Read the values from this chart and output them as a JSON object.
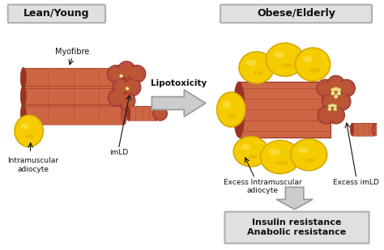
{
  "bg_color": "#ffffff",
  "lean_label": "Lean/Young",
  "obese_label": "Obese/Elderly",
  "lipotoxicity_label": "Lipotoxicity",
  "myofibre_label": "Myofibre",
  "imld_label": "imLD",
  "intramuscular_label": "Intramuscular\nadiocyte",
  "excess_intramuscular_label": "Excess Intramuscular\nadiocyte",
  "excess_imld_label": "Excess imLD",
  "insulin_label": "Insulin resistance\nAnabolic resistance",
  "muscle_color": "#cc6644",
  "muscle_dark": "#993322",
  "muscle_stripe": "#bb5533",
  "muscle_end": "#b85040",
  "fat_yellow": "#f5cc00",
  "fat_highlight": "#f8e040",
  "fat_border": "#d4aa00",
  "imld_color": "#f2e8a0",
  "imld_border": "#c8b840",
  "box_gray_light": "#e0e0e0",
  "box_gray_dark": "#b0b0b0",
  "arrow_fill": "#cccccc",
  "arrow_edge": "#999999",
  "text_color": "#111111"
}
